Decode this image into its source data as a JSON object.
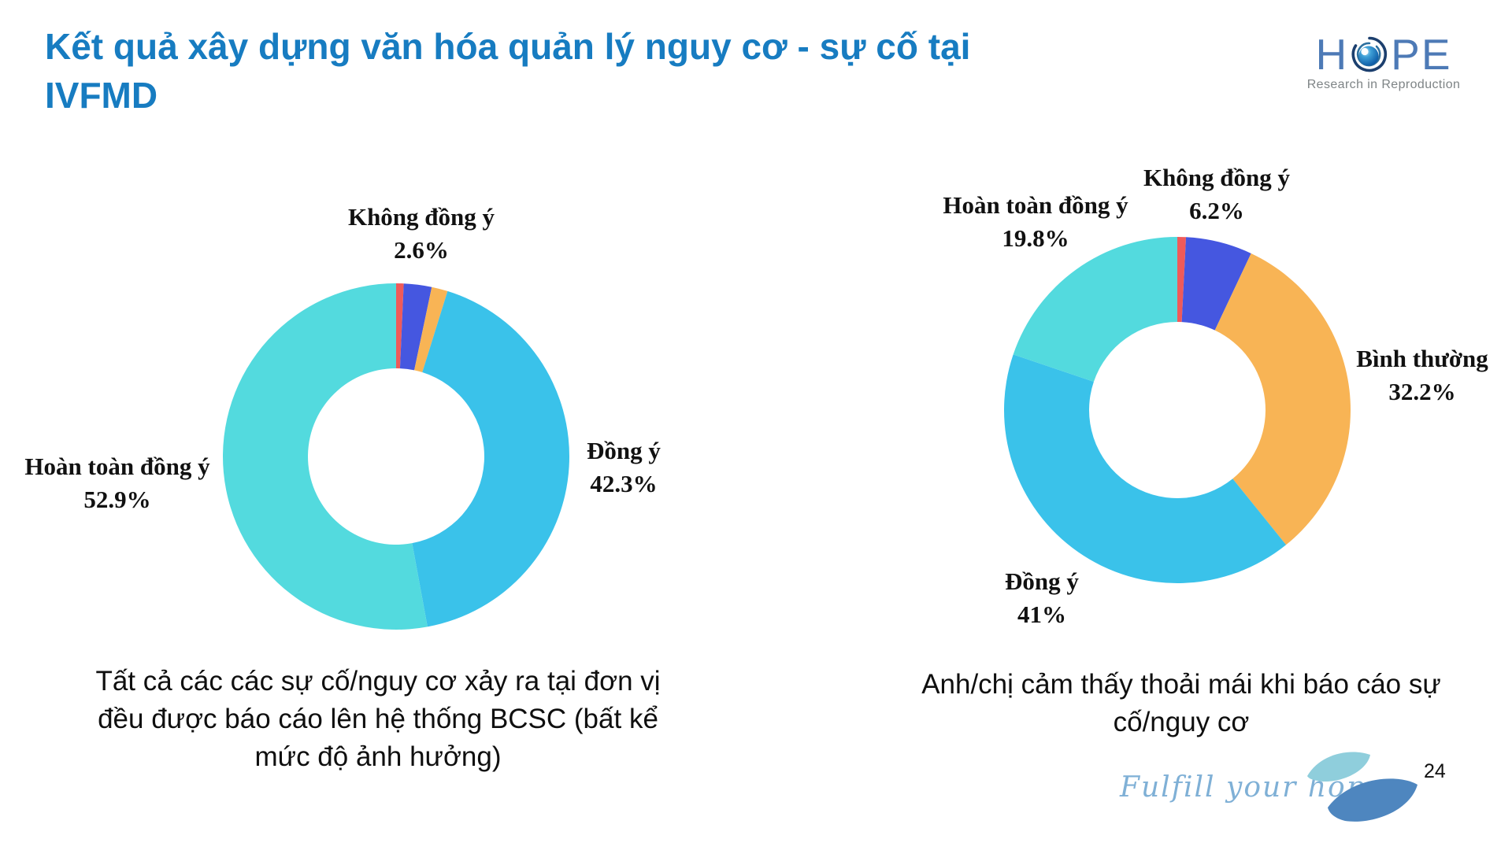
{
  "slide": {
    "title": "Kết quả xây dựng văn hóa quản lý nguy cơ - sự cố tại IVFMD",
    "page_number": "24"
  },
  "brand": {
    "logo_h": "H",
    "logo_pe": "PE",
    "logo_subtitle": "Research in Reproduction",
    "footer_tagline": "Fulfill your hope"
  },
  "colors": {
    "title_blue": "#177cc1",
    "strongly_agree_teal": "#53dade",
    "agree_blue": "#3ac2ea",
    "neutral_orange": "#f8b455",
    "disagree_blue": "#4557e0",
    "strongly_disagree_red": "#ef5a5a",
    "logo_blue": "#4d7ab6",
    "tagline_blue": "#7fb0d6"
  },
  "chart_data": [
    {
      "type": "pie",
      "subtype": "donut",
      "start_angle_deg": 0,
      "direction": "clockwise",
      "legend_position": "none",
      "caption": "Tất cả các các sự cố/nguy cơ xảy ra tại đơn vị đều được báo cáo lên hệ thống BCSC (bất kể mức độ ảnh hưởng)",
      "segments": [
        {
          "label": "",
          "value": 0.7,
          "color": "#ef5a5a"
        },
        {
          "label": "Không đồng ý",
          "value": 2.6,
          "color": "#4557e0"
        },
        {
          "label": "",
          "value": 1.5,
          "color": "#f8b455"
        },
        {
          "label": "Đồng ý",
          "value": 42.3,
          "color": "#3ac2ea"
        },
        {
          "label": "Hoàn toàn đồng ý",
          "value": 52.9,
          "color": "#53dade"
        }
      ],
      "callouts": {
        "khong_dong_y": {
          "label": "Không đồng ý",
          "pct": "2.6%"
        },
        "dong_y": {
          "label": "Đồng ý",
          "pct": "42.3%"
        },
        "hoan_toan_dong_y": {
          "label": "Hoàn toàn đồng ý",
          "pct": "52.9%"
        }
      }
    },
    {
      "type": "pie",
      "subtype": "donut",
      "start_angle_deg": 0,
      "direction": "clockwise",
      "legend_position": "none",
      "caption": "Anh/chị cảm thấy thoải mái khi báo cáo sự cố/nguy cơ",
      "segments": [
        {
          "label": "",
          "value": 0.8,
          "color": "#ef5a5a"
        },
        {
          "label": "Không đồng ý",
          "value": 6.2,
          "color": "#4557e0"
        },
        {
          "label": "Bình thường",
          "value": 32.2,
          "color": "#f8b455"
        },
        {
          "label": "Đồng ý",
          "value": 41,
          "color": "#3ac2ea"
        },
        {
          "label": "Hoàn toàn đồng ý",
          "value": 19.8,
          "color": "#53dade"
        }
      ],
      "callouts": {
        "hoan_toan_dong_y": {
          "label": "Hoàn toàn đồng ý",
          "pct": "19.8%"
        },
        "khong_dong_y": {
          "label": "Không đồng ý",
          "pct": "6.2%"
        },
        "binh_thuong": {
          "label": "Bình thường",
          "pct": "32.2%"
        },
        "dong_y": {
          "label": "Đồng ý",
          "pct": "41%"
        }
      }
    }
  ]
}
